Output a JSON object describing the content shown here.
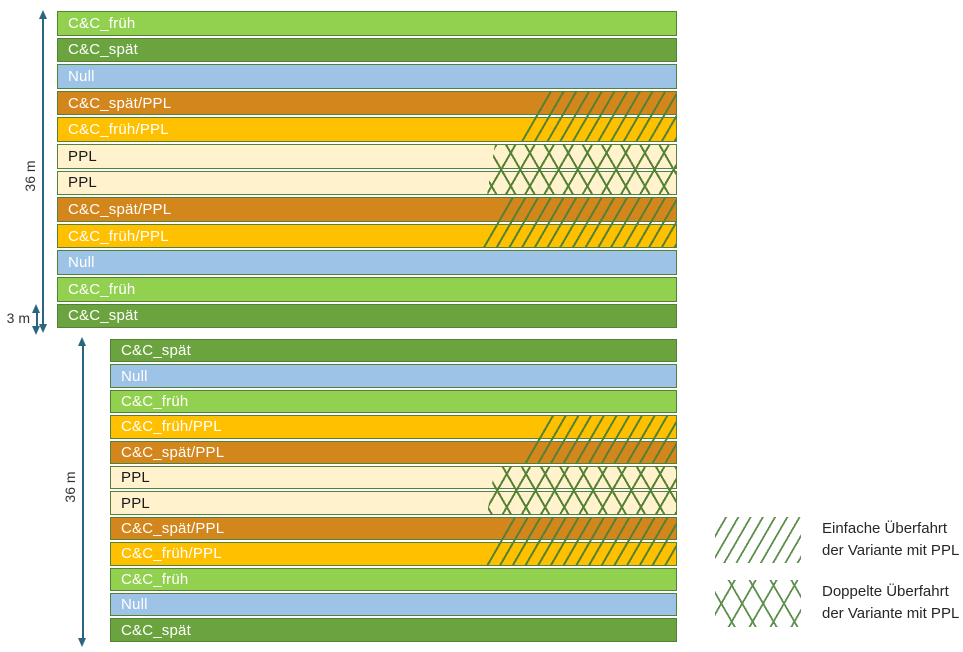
{
  "figure": {
    "dimension_labels": {
      "block1": "36 m",
      "strip": "3 m",
      "block2": "36 m"
    },
    "blocks": [
      {
        "name": "block-1",
        "strips": [
          {
            "label": "C&C_früh",
            "variant": "cc_frueh",
            "hatch": "none"
          },
          {
            "label": "C&C_spät",
            "variant": "cc_spaet",
            "hatch": "none"
          },
          {
            "label": "Null",
            "variant": "null",
            "hatch": "none"
          },
          {
            "label": "C&C_spät/PPL",
            "variant": "cc_spaet_ppl",
            "hatch": "single"
          },
          {
            "label": "C&C_früh/PPL",
            "variant": "cc_frueh_ppl",
            "hatch": "single"
          },
          {
            "label": "PPL",
            "variant": "ppl",
            "hatch": "cross"
          },
          {
            "label": "PPL",
            "variant": "ppl",
            "hatch": "cross"
          },
          {
            "label": "C&C_spät/PPL",
            "variant": "cc_spaet_ppl",
            "hatch": "single"
          },
          {
            "label": "C&C_früh/PPL",
            "variant": "cc_frueh_ppl",
            "hatch": "single"
          },
          {
            "label": "Null",
            "variant": "null",
            "hatch": "none"
          },
          {
            "label": "C&C_früh",
            "variant": "cc_frueh",
            "hatch": "none"
          },
          {
            "label": "C&C_spät",
            "variant": "cc_spaet",
            "hatch": "none"
          }
        ]
      },
      {
        "name": "block-2",
        "strips": [
          {
            "label": "C&C_spät",
            "variant": "cc_spaet",
            "hatch": "none"
          },
          {
            "label": "Null",
            "variant": "null",
            "hatch": "none"
          },
          {
            "label": "C&C_früh",
            "variant": "cc_frueh",
            "hatch": "none"
          },
          {
            "label": "C&C_früh/PPL",
            "variant": "cc_frueh_ppl",
            "hatch": "single"
          },
          {
            "label": "C&C_spät/PPL",
            "variant": "cc_spaet_ppl",
            "hatch": "single"
          },
          {
            "label": "PPL",
            "variant": "ppl",
            "hatch": "cross"
          },
          {
            "label": "PPL",
            "variant": "ppl",
            "hatch": "cross"
          },
          {
            "label": "C&C_spät/PPL",
            "variant": "cc_spaet_ppl",
            "hatch": "single"
          },
          {
            "label": "C&C_früh/PPL",
            "variant": "cc_frueh_ppl",
            "hatch": "single"
          },
          {
            "label": "C&C_früh",
            "variant": "cc_frueh",
            "hatch": "none"
          },
          {
            "label": "Null",
            "variant": "null",
            "hatch": "none"
          },
          {
            "label": "C&C_spät",
            "variant": "cc_spaet",
            "hatch": "none"
          }
        ]
      }
    ],
    "legend": {
      "items": [
        {
          "pattern": "single-hatch",
          "lines": [
            "Einfache Überfahrt",
            "der Variante mit PPL"
          ]
        },
        {
          "pattern": "cross-hatch",
          "lines": [
            "Doppelte Überfahrt",
            "der Variante mit PPL"
          ]
        }
      ]
    },
    "colors": {
      "cc_frueh": "#92D050",
      "cc_spaet": "#6BA43F",
      "null": "#9DC3E6",
      "cc_spaet_ppl": "#D2861B",
      "cc_frueh_ppl": "#FFC000",
      "ppl": "#FFF2CC",
      "strip_border": "#538135",
      "hatch_line": "#548235",
      "legend_hatch": "#5E8F4C",
      "arrow": "#2A6680"
    }
  }
}
